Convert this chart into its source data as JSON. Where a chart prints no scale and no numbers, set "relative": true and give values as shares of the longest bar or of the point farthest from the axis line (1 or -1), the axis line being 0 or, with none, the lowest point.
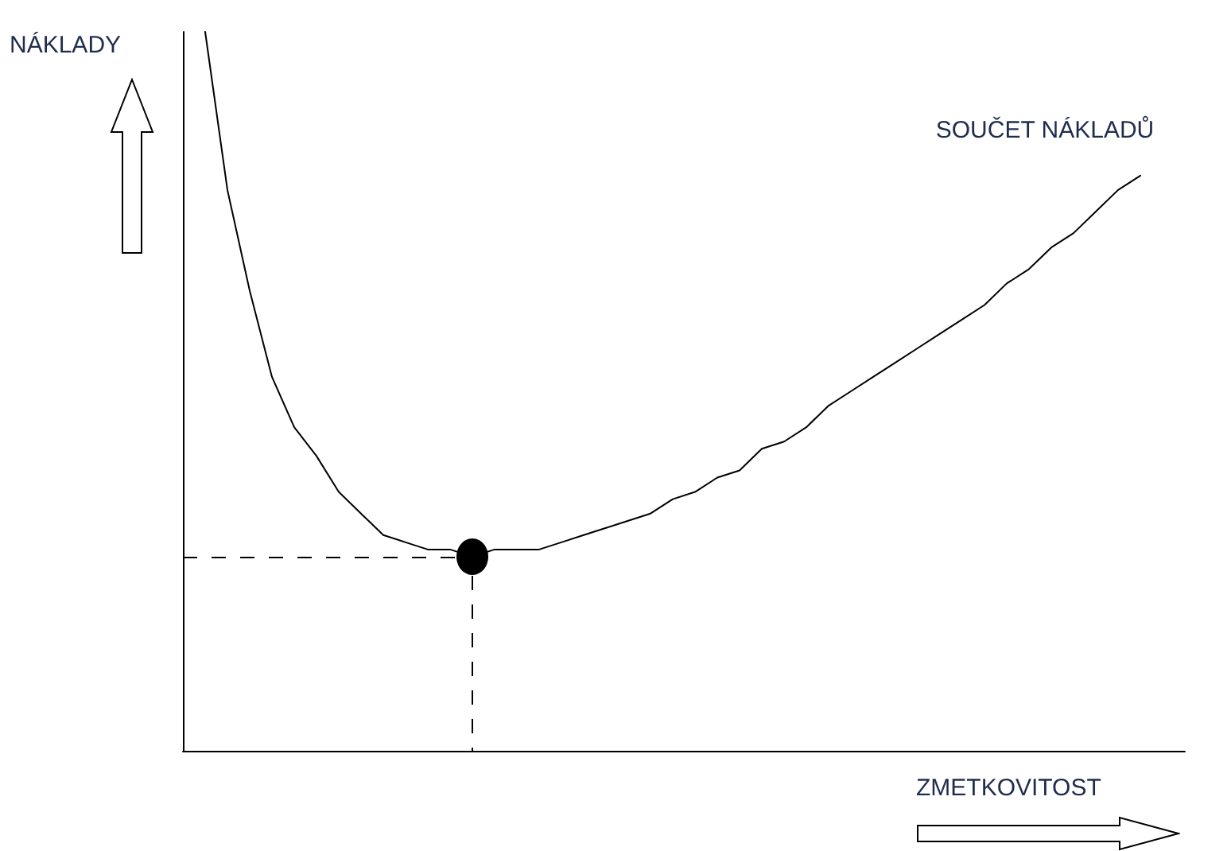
{
  "chart_data": {
    "type": "line",
    "relative": true,
    "ylabel": "NÁKLADY",
    "xlabel": "ZMETKOVITOST",
    "categories": [
      null,
      null,
      null,
      null,
      null,
      null,
      null,
      null,
      null,
      null,
      null,
      null,
      null,
      null,
      null,
      null,
      null,
      null,
      null,
      null,
      null,
      null,
      null,
      null,
      null,
      null,
      null,
      null,
      null,
      null,
      null,
      null,
      null,
      null,
      null,
      null,
      null,
      null,
      null,
      null,
      null,
      null,
      null,
      null,
      null,
      null
    ],
    "series": [
      {
        "name": "SOUČET NÁKLADŮ",
        "color": "#000000",
        "marker": "none",
        "line_style": "solid",
        "values": [
          null,
          1,
          0.78,
          0.64,
          0.52,
          0.45,
          0.41,
          0.36,
          0.33,
          0.3,
          0.29,
          0.28,
          0.28,
          0.27,
          0.28,
          0.28,
          0.28,
          0.29,
          0.3,
          0.31,
          0.32,
          0.33,
          0.35,
          0.36,
          0.38,
          0.39,
          0.42,
          0.43,
          0.45,
          0.48,
          0.5,
          0.52,
          0.54,
          0.56,
          0.58,
          0.6,
          0.62,
          0.65,
          0.67,
          0.7,
          0.72,
          0.75,
          0.78,
          0.8,
          null,
          null
        ]
      }
    ],
    "ref_lines": [
      {
        "axis": "y",
        "value": 0.27,
        "line_style": "dashed",
        "color": "#000000"
      }
    ]
  }
}
